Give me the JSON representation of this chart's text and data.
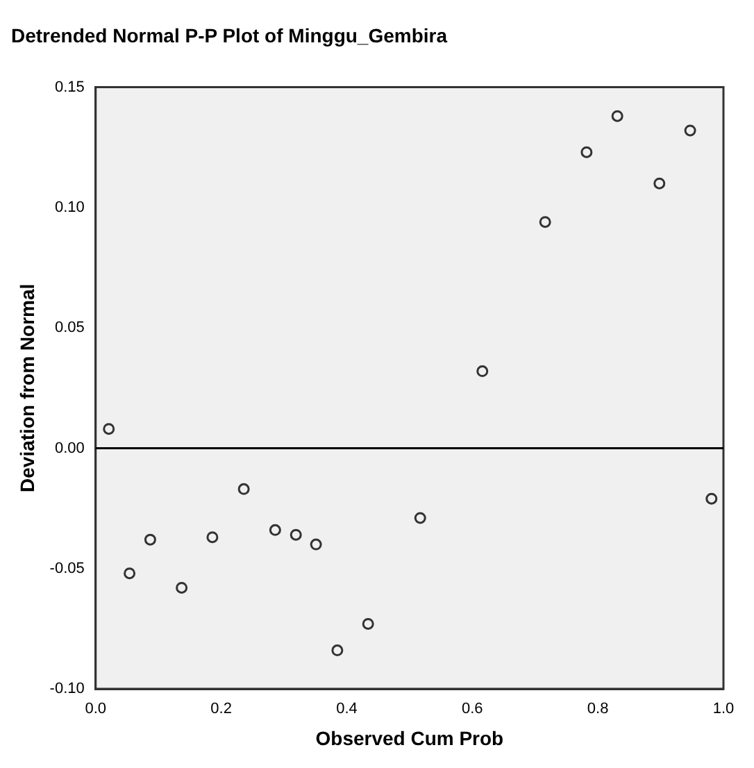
{
  "chart_data": {
    "type": "scatter",
    "title": "Detrended Normal P-P Plot of Minggu_Gembira",
    "xlabel": "Observed Cum Prob",
    "ylabel": "Deviation from Normal",
    "x": [
      0.021,
      0.054,
      0.087,
      0.137,
      0.186,
      0.236,
      0.286,
      0.319,
      0.351,
      0.385,
      0.434,
      0.517,
      0.616,
      0.716,
      0.782,
      0.831,
      0.898,
      0.947,
      0.981
    ],
    "values": [
      0.008,
      -0.052,
      -0.038,
      -0.058,
      -0.037,
      -0.017,
      -0.034,
      -0.036,
      -0.04,
      -0.084,
      -0.073,
      -0.029,
      0.032,
      0.094,
      0.123,
      0.138,
      0.11,
      0.132,
      -0.021
    ],
    "color": "#333333",
    "marker": "circle",
    "xlim": [
      0,
      1
    ],
    "xticks": [
      {
        "value": 0,
        "label": "0.0"
      },
      0.2,
      0.4,
      0.6,
      0.8,
      {
        "value": 1,
        "label": "1.0"
      }
    ],
    "ylim": [
      -0.1,
      0.15
    ],
    "yticks": [
      {
        "value": -0.1,
        "label": "-0.10"
      },
      -0.05,
      {
        "value": 0,
        "label": "0.00"
      },
      0.05,
      {
        "value": 0.1,
        "label": "0.10"
      },
      0.15
    ],
    "ref_lines": [
      {
        "axis": "y",
        "value": 0,
        "color": "#000000"
      }
    ],
    "grid": false,
    "legend": false
  }
}
